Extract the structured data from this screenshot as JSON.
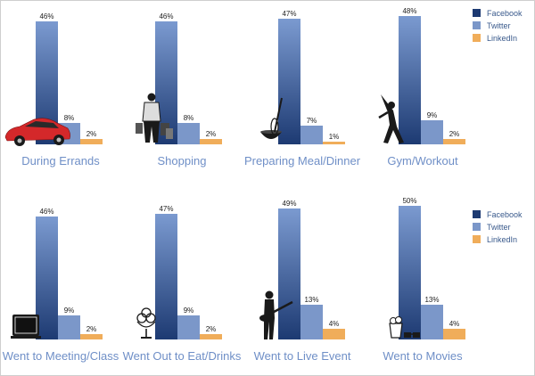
{
  "chart_data": {
    "type": "bar",
    "series_names": [
      "Facebook",
      "Twitter",
      "LinkedIn"
    ],
    "colors": {
      "facebook_top": "#7b9ad0",
      "facebook_bottom": "#1d3a72",
      "twitter": "#7b97c9",
      "linkedin": "#f0ad5a",
      "category_label": "#6f8fc7"
    },
    "value_format": "%",
    "panels": [
      {
        "category": "During Errands",
        "values": [
          46,
          8,
          2
        ],
        "icon": "car-icon"
      },
      {
        "category": "Shopping",
        "values": [
          46,
          8,
          2
        ],
        "icon": "shopper-icon"
      },
      {
        "category": "Preparing Meal/Dinner",
        "values": [
          47,
          7,
          1
        ],
        "icon": "mixing-bowl-icon"
      },
      {
        "category": "Gym/Workout",
        "values": [
          48,
          9,
          2
        ],
        "icon": "workout-icon"
      },
      {
        "category": "Went to Meeting/Class",
        "values": [
          46,
          9,
          2
        ],
        "icon": "chalkboard-icon"
      },
      {
        "category": "Went Out to Eat/Drinks",
        "values": [
          47,
          9,
          2
        ],
        "icon": "ice-cream-sundae-icon"
      },
      {
        "category": "Went to Live Event",
        "values": [
          49,
          13,
          4
        ],
        "icon": "guitarist-icon"
      },
      {
        "category": "Went to Movies",
        "values": [
          50,
          13,
          4
        ],
        "icon": "popcorn-3d-glasses-icon"
      }
    ],
    "legends": [
      {
        "placement": "top-right",
        "entries": [
          "Facebook",
          "Twitter",
          "LinkedIn"
        ]
      },
      {
        "placement": "bottom-right",
        "entries": [
          "Facebook",
          "Twitter",
          "LinkedIn"
        ]
      }
    ]
  }
}
